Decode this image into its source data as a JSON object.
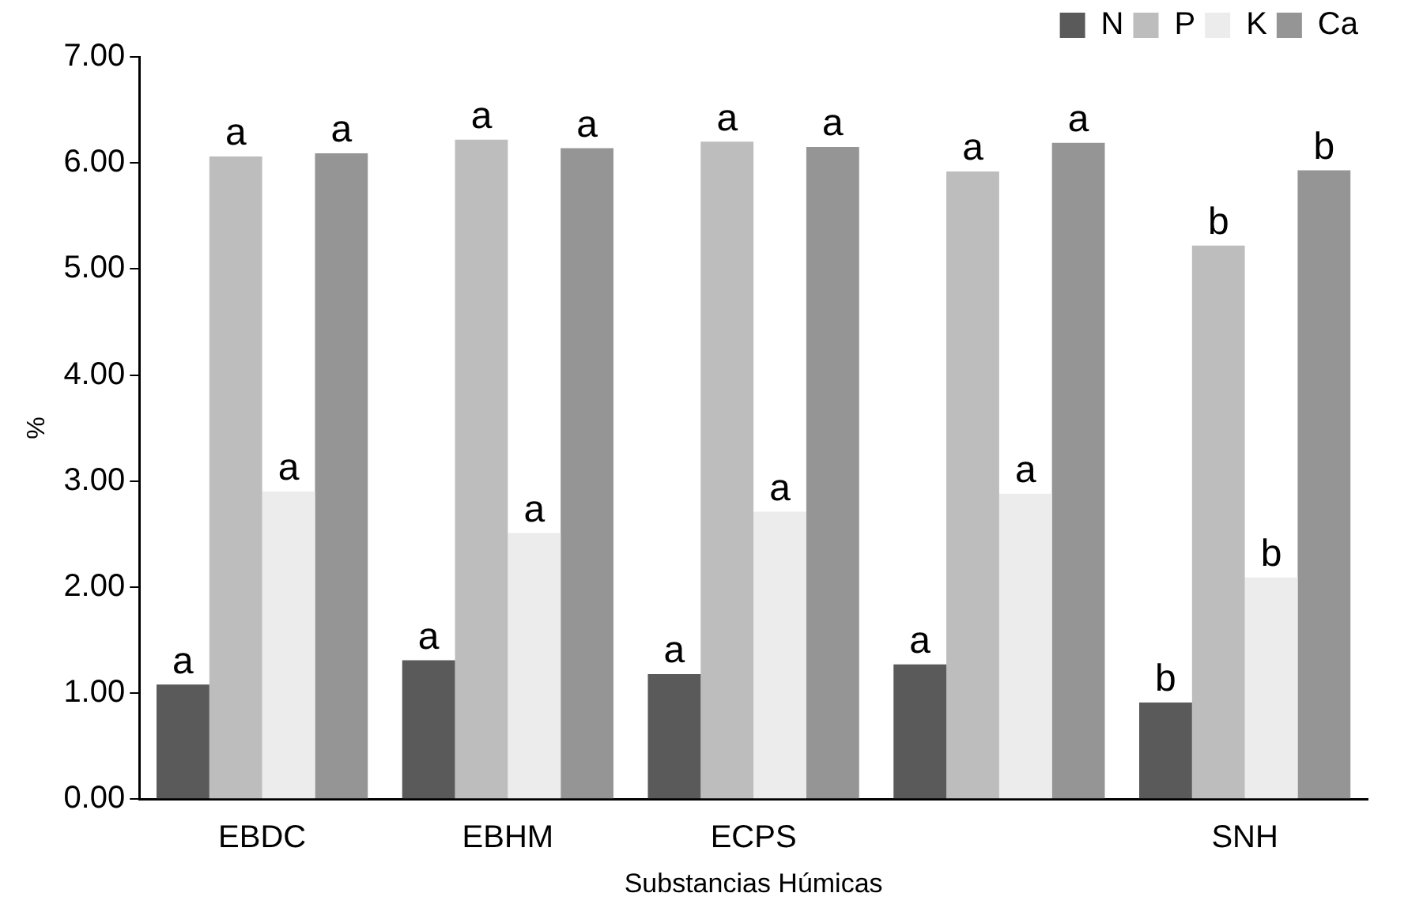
{
  "chart_data": {
    "type": "bar",
    "xlabel": "Substancias Húmicas",
    "ylabel": "%",
    "categories": [
      "EBDC",
      "EBHM",
      "ECPS",
      null,
      "SNH"
    ],
    "series": [
      {
        "name": "N",
        "color": "#5a5a5a",
        "values": [
          1.08,
          1.31,
          1.18,
          1.27,
          0.91
        ],
        "value_labels": [
          "a",
          "a",
          "a",
          "a",
          "b"
        ]
      },
      {
        "name": "P",
        "color": "#bdbdbd",
        "values": [
          6.06,
          6.22,
          6.2,
          5.92,
          5.22
        ],
        "value_labels": [
          "a",
          "a",
          "a",
          "a",
          "b"
        ]
      },
      {
        "name": "K",
        "color": "#ececec",
        "values": [
          2.9,
          2.51,
          2.71,
          2.88,
          2.09
        ],
        "value_labels": [
          "a",
          "a",
          "a",
          "a",
          "b"
        ]
      },
      {
        "name": "Ca",
        "color": "#959595",
        "values": [
          6.09,
          6.14,
          6.15,
          6.19,
          5.93
        ],
        "value_labels": [
          "a",
          "a",
          "a",
          "a",
          "b"
        ]
      }
    ],
    "ylim": [
      0,
      7
    ],
    "yticks": [
      {
        "value": 0,
        "label": "0.00"
      },
      {
        "value": 1,
        "label": "1.00"
      },
      {
        "value": 2,
        "label": "2.00"
      },
      {
        "value": 3,
        "label": "3.00"
      },
      {
        "value": 4,
        "label": "4.00"
      },
      {
        "value": 5,
        "label": "5.00"
      },
      {
        "value": 6,
        "label": "6.00"
      },
      {
        "value": 7,
        "label": "7.00"
      }
    ],
    "legend": "top right",
    "grid": false
  }
}
